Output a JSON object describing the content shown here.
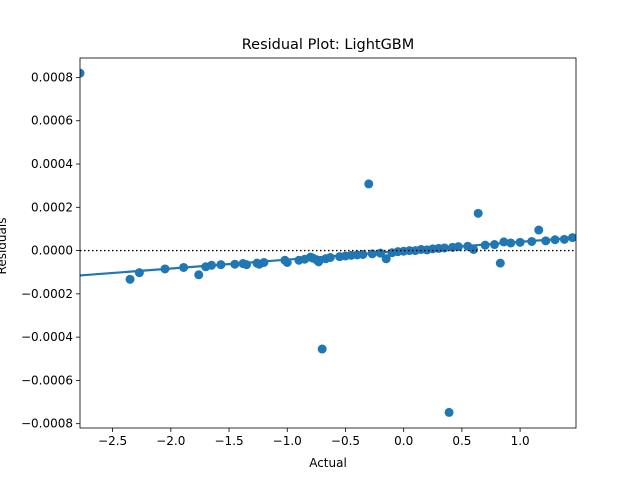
{
  "chart_data": {
    "type": "scatter",
    "title": "Residual Plot: LightGBM",
    "xlabel": "Actual",
    "ylabel": "Residuals",
    "xlim": [
      -2.78,
      1.48
    ],
    "ylim": [
      -0.00082,
      0.00089
    ],
    "x_ticks": [
      -2.5,
      -2.0,
      -1.5,
      -1.0,
      -0.5,
      0.0,
      0.5,
      1.0
    ],
    "x_tick_labels": [
      "−2.5",
      "−2.0",
      "−1.5",
      "−1.0",
      "−0.5",
      "0.0",
      "0.5",
      "1.0"
    ],
    "y_ticks": [
      -0.0008,
      -0.0006,
      -0.0004,
      -0.0002,
      0.0,
      0.0002,
      0.0004,
      0.0006,
      0.0008
    ],
    "y_tick_labels": [
      "−0.0008",
      "−0.0006",
      "−0.0004",
      "−0.0002",
      "0.0000",
      "0.0002",
      "0.0004",
      "0.0006",
      "0.0008"
    ],
    "grid": false,
    "zero_line": {
      "y": 0.0,
      "style": "dotted",
      "color": "#000000"
    },
    "point_color": "#1f77b4",
    "fit_line": {
      "x": [
        -2.78,
        1.48
      ],
      "y": [
        -0.000115,
        6e-05
      ],
      "color": "#1f77b4"
    },
    "points": [
      {
        "x": -2.78,
        "y": 0.00082
      },
      {
        "x": -2.35,
        "y": -0.000133
      },
      {
        "x": -2.27,
        "y": -0.000102
      },
      {
        "x": -2.05,
        "y": -8.5e-05
      },
      {
        "x": -1.89,
        "y": -7.8e-05
      },
      {
        "x": -1.76,
        "y": -0.000112
      },
      {
        "x": -1.7,
        "y": -7.5e-05
      },
      {
        "x": -1.65,
        "y": -6.8e-05
      },
      {
        "x": -1.57,
        "y": -6.5e-05
      },
      {
        "x": -1.45,
        "y": -6.3e-05
      },
      {
        "x": -1.38,
        "y": -6e-05
      },
      {
        "x": -1.35,
        "y": -6.5e-05
      },
      {
        "x": -1.26,
        "y": -5.8e-05
      },
      {
        "x": -1.24,
        "y": -6.3e-05
      },
      {
        "x": -1.2,
        "y": -5.5e-05
      },
      {
        "x": -1.02,
        "y": -4.5e-05
      },
      {
        "x": -1.0,
        "y": -5.5e-05
      },
      {
        "x": -0.9,
        "y": -4.5e-05
      },
      {
        "x": -0.85,
        "y": -4e-05
      },
      {
        "x": -0.8,
        "y": -3e-05
      },
      {
        "x": -0.78,
        "y": -3.5e-05
      },
      {
        "x": -0.75,
        "y": -4.2e-05
      },
      {
        "x": -0.73,
        "y": -5.2e-05
      },
      {
        "x": -0.7,
        "y": -0.000455
      },
      {
        "x": -0.67,
        "y": -3.8e-05
      },
      {
        "x": -0.63,
        "y": -3.2e-05
      },
      {
        "x": -0.55,
        "y": -2.8e-05
      },
      {
        "x": -0.5,
        "y": -2.5e-05
      },
      {
        "x": -0.45,
        "y": -2.2e-05
      },
      {
        "x": -0.4,
        "y": -2e-05
      },
      {
        "x": -0.35,
        "y": -1.8e-05
      },
      {
        "x": -0.3,
        "y": 0.000308
      },
      {
        "x": -0.27,
        "y": -1.5e-05
      },
      {
        "x": -0.2,
        "y": -1.2e-05
      },
      {
        "x": -0.15,
        "y": -3.8e-05
      },
      {
        "x": -0.1,
        "y": -1e-05
      },
      {
        "x": -0.05,
        "y": -5e-06
      },
      {
        "x": 0.0,
        "y": -3e-06
      },
      {
        "x": 0.05,
        "y": 0.0
      },
      {
        "x": 0.1,
        "y": 0.0
      },
      {
        "x": 0.15,
        "y": 5e-06
      },
      {
        "x": 0.2,
        "y": 3e-06
      },
      {
        "x": 0.25,
        "y": 8e-06
      },
      {
        "x": 0.3,
        "y": 1e-05
      },
      {
        "x": 0.35,
        "y": 1.2e-05
      },
      {
        "x": 0.39,
        "y": -0.000748
      },
      {
        "x": 0.42,
        "y": 1.5e-05
      },
      {
        "x": 0.47,
        "y": 1.8e-05
      },
      {
        "x": 0.55,
        "y": 2e-05
      },
      {
        "x": 0.6,
        "y": 5e-06
      },
      {
        "x": 0.64,
        "y": 0.000172
      },
      {
        "x": 0.7,
        "y": 2.5e-05
      },
      {
        "x": 0.78,
        "y": 2.8e-05
      },
      {
        "x": 0.83,
        "y": -5.8e-05
      },
      {
        "x": 0.86,
        "y": 4e-05
      },
      {
        "x": 0.92,
        "y": 3.5e-05
      },
      {
        "x": 1.0,
        "y": 3.8e-05
      },
      {
        "x": 1.1,
        "y": 4.2e-05
      },
      {
        "x": 1.16,
        "y": 9.5e-05
      },
      {
        "x": 1.22,
        "y": 4.5e-05
      },
      {
        "x": 1.3,
        "y": 5e-05
      },
      {
        "x": 1.38,
        "y": 5.2e-05
      },
      {
        "x": 1.45,
        "y": 6e-05
      }
    ]
  }
}
